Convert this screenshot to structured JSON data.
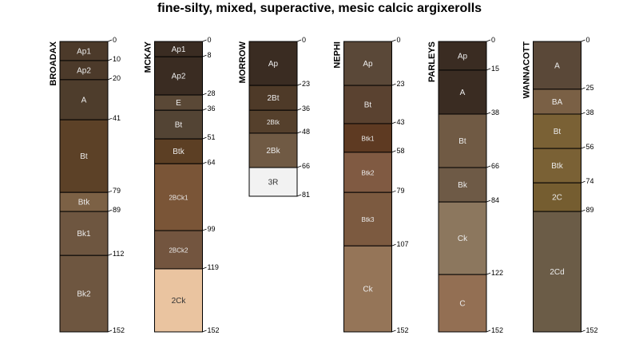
{
  "chart_data": {
    "type": "soil-profile",
    "title": "fine-silty, mixed, superactive, mesic calcic argixerolls",
    "ylabel": "",
    "ylim": [
      0,
      152
    ],
    "profiles": [
      {
        "name": "BROADAX",
        "horizons": [
          {
            "name": "Ap1",
            "top": 0,
            "bottom": 10,
            "color": "#4c3a2a"
          },
          {
            "name": "Ap2",
            "top": 10,
            "bottom": 20,
            "color": "#4c3a2a"
          },
          {
            "name": "A",
            "top": 20,
            "bottom": 41,
            "color": "#4e3d2c"
          },
          {
            "name": "Bt",
            "top": 41,
            "bottom": 79,
            "color": "#5c4127"
          },
          {
            "name": "Btk",
            "top": 79,
            "bottom": 89,
            "color": "#7c6145"
          },
          {
            "name": "Bk1",
            "top": 89,
            "bottom": 112,
            "color": "#6e5640"
          },
          {
            "name": "Bk2",
            "top": 112,
            "bottom": 152,
            "color": "#6e5640"
          }
        ],
        "depth_labels": [
          "0",
          "10",
          "20",
          "41",
          "79",
          "89",
          "112",
          "152"
        ]
      },
      {
        "name": "MCKAY",
        "horizons": [
          {
            "name": "Ap1",
            "top": 0,
            "bottom": 8,
            "color": "#3a2c22"
          },
          {
            "name": "Ap2",
            "top": 8,
            "bottom": 28,
            "color": "#3a2c22"
          },
          {
            "name": "E",
            "top": 28,
            "bottom": 36,
            "color": "#5a4836"
          },
          {
            "name": "Bt",
            "top": 36,
            "bottom": 51,
            "color": "#534434"
          },
          {
            "name": "Btk",
            "top": 51,
            "bottom": 64,
            "color": "#5c3f24"
          },
          {
            "name": "2BCk1",
            "top": 64,
            "bottom": 99,
            "color": "#7a5537"
          },
          {
            "name": "2BCk2",
            "top": 99,
            "bottom": 119,
            "color": "#73553f"
          },
          {
            "name": "2Ck",
            "top": 119,
            "bottom": 152,
            "color": "#eac4a0"
          }
        ],
        "depth_labels": [
          "0",
          "8",
          "28",
          "36",
          "51",
          "64",
          "99",
          "119",
          "152"
        ]
      },
      {
        "name": "MORROW",
        "horizons": [
          {
            "name": "Ap",
            "top": 0,
            "bottom": 23,
            "color": "#3a2c22"
          },
          {
            "name": "2Bt",
            "top": 23,
            "bottom": 36,
            "color": "#4e3a28"
          },
          {
            "name": "2Btk",
            "top": 36,
            "bottom": 48,
            "color": "#55402c"
          },
          {
            "name": "2Bk",
            "top": 48,
            "bottom": 66,
            "color": "#705a44"
          },
          {
            "name": "3R",
            "top": 66,
            "bottom": 81,
            "color": "#f2f2f2"
          }
        ],
        "depth_labels": [
          "0",
          "23",
          "36",
          "48",
          "66",
          "81"
        ]
      },
      {
        "name": "NEPHI",
        "horizons": [
          {
            "name": "Ap",
            "top": 0,
            "bottom": 23,
            "color": "#5a4838"
          },
          {
            "name": "Bt",
            "top": 23,
            "bottom": 43,
            "color": "#5a4230"
          },
          {
            "name": "Btk1",
            "top": 43,
            "bottom": 58,
            "color": "#5e3a22"
          },
          {
            "name": "Btk2",
            "top": 58,
            "bottom": 79,
            "color": "#805a42"
          },
          {
            "name": "Btk3",
            "top": 79,
            "bottom": 107,
            "color": "#7c5a40"
          },
          {
            "name": "Ck",
            "top": 107,
            "bottom": 152,
            "color": "#957558"
          }
        ],
        "depth_labels": [
          "0",
          "23",
          "43",
          "58",
          "79",
          "107",
          "152"
        ]
      },
      {
        "name": "PARLEYS",
        "horizons": [
          {
            "name": "Ap",
            "top": 0,
            "bottom": 15,
            "color": "#3a2c22"
          },
          {
            "name": "A",
            "top": 15,
            "bottom": 38,
            "color": "#3a2c22"
          },
          {
            "name": "Bt",
            "top": 38,
            "bottom": 66,
            "color": "#705a44"
          },
          {
            "name": "Bk",
            "top": 66,
            "bottom": 84,
            "color": "#6e5a46"
          },
          {
            "name": "Ck",
            "top": 84,
            "bottom": 122,
            "color": "#8c775e"
          },
          {
            "name": "C",
            "top": 122,
            "bottom": 152,
            "color": "#936f53"
          }
        ],
        "depth_labels": [
          "0",
          "15",
          "38",
          "66",
          "84",
          "122",
          "152"
        ]
      },
      {
        "name": "WANNACOTT",
        "horizons": [
          {
            "name": "A",
            "top": 0,
            "bottom": 25,
            "color": "#5a4838"
          },
          {
            "name": "BA",
            "top": 25,
            "bottom": 38,
            "color": "#7a6045"
          },
          {
            "name": "Bt",
            "top": 38,
            "bottom": 56,
            "color": "#7a6135"
          },
          {
            "name": "Btk",
            "top": 56,
            "bottom": 74,
            "color": "#7a6135"
          },
          {
            "name": "2C",
            "top": 74,
            "bottom": 89,
            "color": "#755d30"
          },
          {
            "name": "2Cd",
            "top": 89,
            "bottom": 152,
            "color": "#6b5c47"
          }
        ],
        "depth_labels": [
          "0",
          "25",
          "38",
          "56",
          "74",
          "89",
          "152"
        ]
      }
    ]
  }
}
